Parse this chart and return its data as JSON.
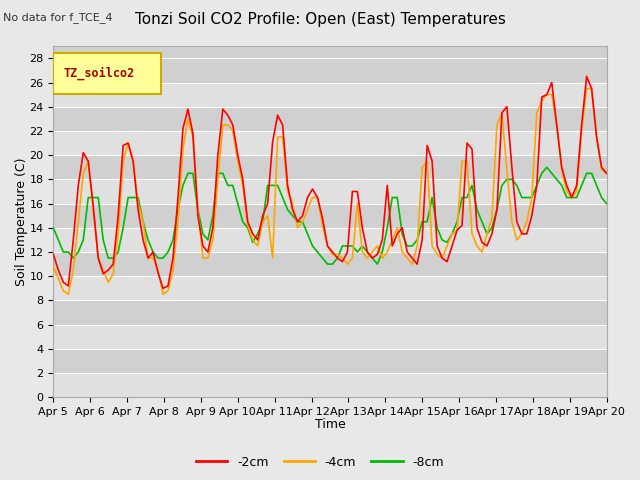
{
  "title": "Tonzi Soil CO2 Profile: Open (East) Temperatures",
  "subtitle": "No data for f_TCE_4",
  "xlabel": "Time",
  "ylabel": "Soil Temperature (C)",
  "legend_label": "TZ_soilco2",
  "ylim": [
    0,
    29
  ],
  "yticks": [
    0,
    2,
    4,
    6,
    8,
    10,
    12,
    14,
    16,
    18,
    20,
    22,
    24,
    26,
    28
  ],
  "xtick_labels": [
    "Apr 5",
    "Apr 6",
    "Apr 7",
    "Apr 8",
    "Apr 9",
    "Apr 10",
    "Apr 11",
    "Apr 12",
    "Apr 13",
    "Apr 14",
    "Apr 15",
    "Apr 16",
    "Apr 17",
    "Apr 18",
    "Apr 19",
    "Apr 20"
  ],
  "series_labels": [
    "-2cm",
    "-4cm",
    "-8cm"
  ],
  "series_colors": [
    "#FF0000",
    "#FFA500",
    "#00BB00"
  ],
  "fig_bg_color": "#E8E8E8",
  "plot_bg_color": "#D8D8D8",
  "band_light": "#E0E0E0",
  "band_dark": "#D0D0D0",
  "title_fontsize": 11,
  "tick_fontsize": 8,
  "axis_label_fontsize": 9,
  "legend_box_color": "#FFFF99",
  "legend_box_edge": "#CCAA00",
  "line_width": 1.2,
  "t_2cm": [
    11.8,
    10.5,
    9.5,
    9.2,
    13.0,
    17.5,
    20.2,
    19.5,
    15.8,
    11.5,
    10.2,
    10.5,
    11.0,
    15.0,
    20.8,
    21.0,
    19.5,
    15.5,
    13.0,
    11.5,
    12.0,
    10.3,
    9.0,
    9.2,
    11.5,
    16.5,
    22.2,
    23.8,
    21.8,
    15.0,
    12.5,
    12.0,
    14.0,
    20.0,
    23.8,
    23.3,
    22.5,
    20.0,
    18.0,
    14.5,
    13.5,
    13.0,
    15.0,
    16.0,
    21.1,
    23.3,
    22.5,
    17.5,
    15.5,
    14.5,
    15.0,
    16.5,
    17.2,
    16.5,
    14.8,
    12.5,
    12.0,
    11.5,
    11.2,
    12.0,
    17.0,
    17.0,
    14.0,
    12.0,
    11.5,
    11.8,
    13.0,
    17.5,
    12.5,
    13.5,
    14.0,
    12.0,
    11.5,
    11.0,
    13.0,
    20.8,
    19.5,
    12.5,
    11.5,
    11.2,
    12.5,
    13.8,
    14.2,
    21.0,
    20.5,
    14.0,
    12.8,
    12.5,
    13.5,
    15.5,
    23.5,
    24.0,
    19.0,
    14.5,
    13.5,
    13.5,
    15.0,
    17.5,
    24.8,
    25.0,
    26.0,
    22.5,
    19.0,
    17.5,
    16.5,
    17.5,
    22.5,
    26.5,
    25.5,
    21.5,
    19.0,
    18.5
  ],
  "t_4cm": [
    10.8,
    9.8,
    8.8,
    8.5,
    10.5,
    14.5,
    18.5,
    19.5,
    15.5,
    11.5,
    10.5,
    9.5,
    10.2,
    13.5,
    19.5,
    21.0,
    19.5,
    16.0,
    14.5,
    11.5,
    11.5,
    10.5,
    8.5,
    8.8,
    10.5,
    14.5,
    20.5,
    23.0,
    21.5,
    15.5,
    11.5,
    11.5,
    13.0,
    18.0,
    22.5,
    22.5,
    22.0,
    19.5,
    17.5,
    14.2,
    13.0,
    12.5,
    14.5,
    15.0,
    11.5,
    21.5,
    21.5,
    17.0,
    16.0,
    14.0,
    14.5,
    15.5,
    16.5,
    16.5,
    14.2,
    12.5,
    11.8,
    11.8,
    11.5,
    11.0,
    11.5,
    16.0,
    12.0,
    11.5,
    12.0,
    12.5,
    11.5,
    12.0,
    13.0,
    14.0,
    12.0,
    11.5,
    11.0,
    12.5,
    19.0,
    19.5,
    12.5,
    11.8,
    11.5,
    12.5,
    13.5,
    13.8,
    19.5,
    19.5,
    13.5,
    12.5,
    12.0,
    13.5,
    14.8,
    22.5,
    23.5,
    18.8,
    14.5,
    13.0,
    13.5,
    14.5,
    16.5,
    23.5,
    24.5,
    25.0,
    25.0,
    22.5,
    18.8,
    17.0,
    16.5,
    17.0,
    22.0,
    25.5,
    25.5,
    21.5,
    18.8,
    18.5
  ],
  "t_8cm": [
    14.0,
    13.0,
    12.0,
    12.0,
    11.5,
    12.0,
    13.0,
    16.5,
    16.5,
    16.5,
    13.0,
    11.5,
    11.5,
    12.0,
    14.0,
    16.5,
    16.5,
    16.5,
    14.5,
    13.0,
    12.0,
    11.5,
    11.5,
    12.0,
    13.0,
    15.5,
    17.5,
    18.5,
    18.5,
    15.5,
    13.5,
    13.0,
    15.0,
    18.5,
    18.5,
    17.5,
    17.5,
    16.0,
    14.5,
    14.0,
    12.8,
    13.5,
    14.5,
    17.5,
    17.5,
    17.5,
    16.5,
    15.5,
    15.0,
    14.5,
    14.5,
    13.5,
    12.5,
    12.0,
    11.5,
    11.0,
    11.0,
    11.5,
    12.5,
    12.5,
    12.5,
    12.0,
    12.5,
    12.0,
    11.5,
    11.0,
    12.0,
    14.0,
    16.5,
    16.5,
    13.5,
    12.5,
    12.5,
    13.0,
    14.5,
    14.5,
    16.5,
    14.0,
    13.0,
    12.8,
    13.5,
    14.5,
    16.5,
    16.5,
    17.5,
    15.5,
    14.5,
    13.5,
    14.0,
    15.5,
    17.5,
    18.0,
    18.0,
    17.5,
    16.5,
    16.5,
    16.5,
    17.5,
    18.5,
    19.0,
    18.5,
    18.0,
    17.5,
    16.5,
    16.5,
    16.5,
    17.5,
    18.5,
    18.5,
    17.5,
    16.5,
    16.0
  ]
}
